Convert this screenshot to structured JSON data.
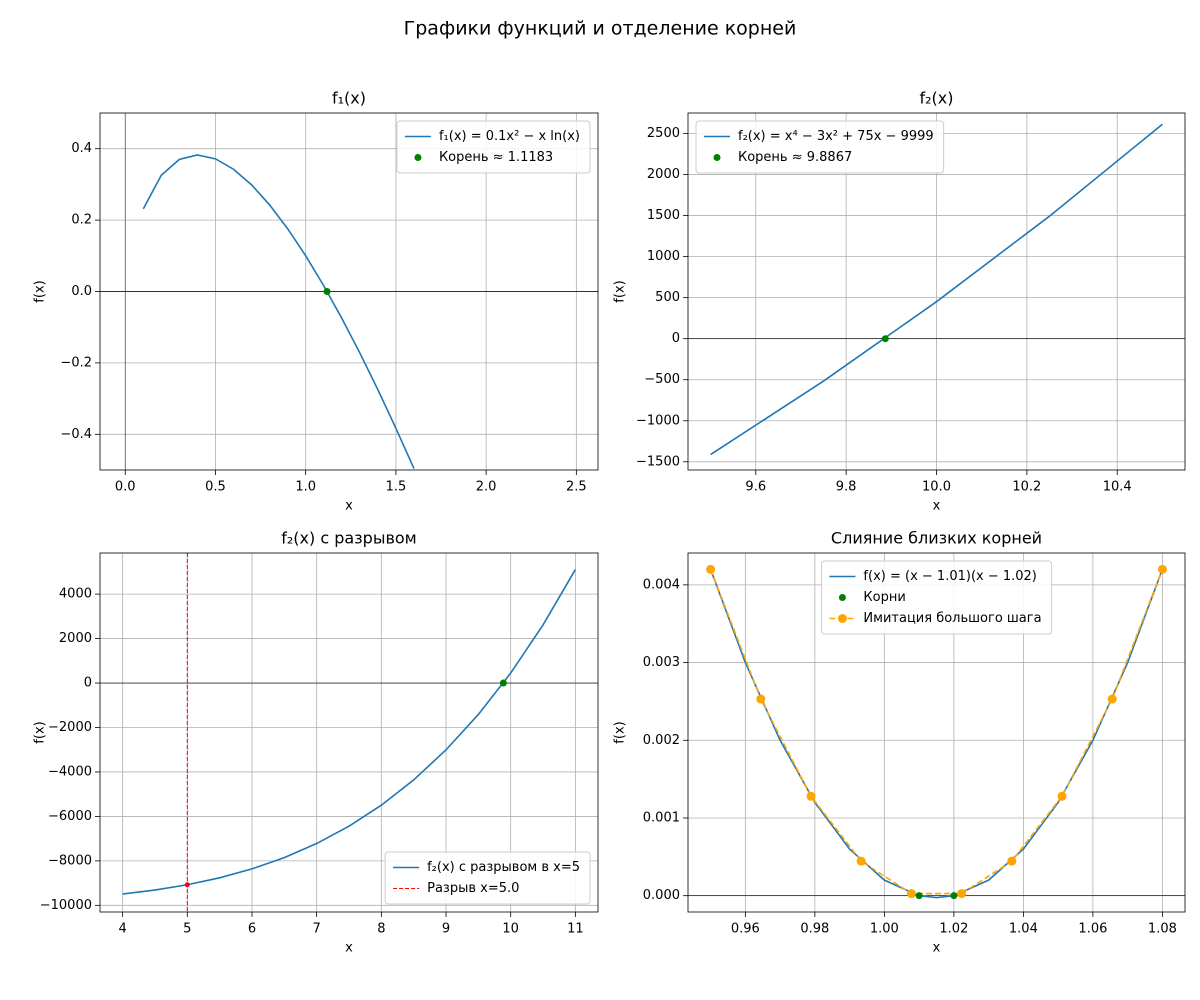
{
  "title": "Графики функций и отделение корней",
  "chart_data": [
    {
      "type": "line",
      "title": "f₁(x)",
      "xlabel": "x",
      "ylabel": "f(x)",
      "grid": true,
      "legend": "upper right",
      "xlim": [
        -0.14,
        2.62
      ],
      "ylim": [
        -0.5,
        0.5
      ],
      "xticks": [
        {
          "value": 0,
          "label": "0.0"
        },
        0.5,
        {
          "value": 1,
          "label": "1.0"
        },
        1.5,
        {
          "value": 2,
          "label": "2.0"
        },
        2.5
      ],
      "yticks": [
        {
          "value": -0.4,
          "label": "−0.4"
        },
        {
          "value": -0.2,
          "label": "−0.2"
        },
        {
          "value": 0,
          "label": "0.0"
        },
        0.2,
        0.4
      ],
      "hline": 0,
      "vline": 0,
      "series": [
        {
          "name": "f₁(x) = 0.1x² − x ln(x)",
          "color": "#1f77b4",
          "style": "line",
          "x": [
            0.1,
            0.2,
            0.3,
            0.4,
            0.5,
            0.6,
            0.7,
            0.8,
            0.9,
            1.0,
            1.1,
            1.2,
            1.3,
            1.4,
            1.5,
            1.6
          ],
          "values": [
            0.2313,
            0.3259,
            0.3702,
            0.3825,
            0.3716,
            0.3425,
            0.2987,
            0.2425,
            0.1758,
            0.1,
            0.0162,
            -0.0748,
            -0.1721,
            -0.2751,
            -0.3832,
            -0.496
          ]
        },
        {
          "name": "Корень ≈ 1.1183",
          "color": "green",
          "style": "marker",
          "x": [
            1.1183
          ],
          "values": [
            0
          ]
        }
      ]
    },
    {
      "type": "line",
      "title": "f₂(x)",
      "xlabel": "x",
      "ylabel": "f(x)",
      "grid": true,
      "legend": "upper left",
      "xlim": [
        9.45,
        10.55
      ],
      "ylim": [
        -1600,
        2750
      ],
      "xticks": [
        9.6,
        9.8,
        {
          "value": 10,
          "label": "10.0"
        },
        10.2,
        10.4
      ],
      "yticks": [
        {
          "value": -1500,
          "label": "−1500"
        },
        {
          "value": -1000,
          "label": "−1000"
        },
        {
          "value": -500,
          "label": "−500"
        },
        0,
        500,
        1000,
        1500,
        2000,
        2500
      ],
      "hline": 0,
      "series": [
        {
          "name": "f₂(x) = x⁴ − 3x² + 75x − 9999",
          "color": "#1f77b4",
          "style": "line",
          "x": [
            9.5,
            9.75,
            10,
            10.25,
            10.5
          ],
          "values": [
            -1412.19,
            -516.06,
            451,
            1492.69,
            2612.81
          ]
        },
        {
          "name": "Корень ≈ 9.8867",
          "color": "green",
          "style": "marker",
          "x": [
            9.8867
          ],
          "values": [
            0
          ]
        }
      ]
    },
    {
      "type": "line",
      "title": "f₂(x) с разрывом",
      "xlabel": "x",
      "ylabel": "f(x)",
      "grid": true,
      "legend": "lower right",
      "xlim": [
        3.65,
        11.35
      ],
      "ylim": [
        -10300,
        5850
      ],
      "xticks": [
        4,
        5,
        6,
        7,
        8,
        9,
        10,
        11
      ],
      "yticks": [
        {
          "value": -10000,
          "label": "−10000"
        },
        {
          "value": -8000,
          "label": "−8000"
        },
        {
          "value": -6000,
          "label": "−6000"
        },
        {
          "value": -4000,
          "label": "−4000"
        },
        {
          "value": -2000,
          "label": "−2000"
        },
        0,
        2000,
        4000
      ],
      "hline": 0,
      "series": [
        {
          "name": "f₂(x) с разрывом в x=5",
          "color": "#1f77b4",
          "style": "line",
          "x": [
            4,
            4.5,
            5,
            5.5,
            6,
            6.5,
            7,
            7.5,
            8,
            8.5,
            9,
            9.5,
            10,
            10.5,
            11
          ],
          "values": [
            -9491,
            -9312.19,
            -9074,
            -8762.19,
            -8361,
            -7853.19,
            -7220,
            -6441.19,
            -5495,
            -4358.19,
            -3006,
            -1412.19,
            451,
            2612.81,
            5104
          ]
        },
        {
          "name": "Разрыв x=5.0",
          "color": "red",
          "style": "vline",
          "x": [
            5
          ]
        },
        {
          "color": "red",
          "style": "small-marker",
          "x": [
            5
          ],
          "values": [
            -9074
          ]
        },
        {
          "color": "green",
          "style": "marker",
          "x": [
            9.8867
          ],
          "values": [
            0
          ]
        }
      ]
    },
    {
      "type": "line",
      "title": "Слияние близких корней",
      "xlabel": "x",
      "ylabel": "f(x)",
      "grid": true,
      "legend": "upper center",
      "xlim": [
        0.9435,
        1.0865
      ],
      "ylim": [
        -0.00021,
        0.00441
      ],
      "xticks": [
        0.96,
        0.98,
        {
          "value": 1,
          "label": "1.00"
        },
        1.02,
        1.04,
        1.06,
        1.08
      ],
      "yticks": [
        {
          "value": 0,
          "label": "0.000"
        },
        0.001,
        0.002,
        0.003,
        0.004
      ],
      "hline": 0,
      "series": [
        {
          "name": "f(x) = (x − 1.01)(x − 1.02)",
          "color": "#1f77b4",
          "style": "line",
          "x": [
            0.95,
            0.96,
            0.97,
            0.98,
            0.99,
            1.0,
            1.01,
            1.015,
            1.02,
            1.03,
            1.04,
            1.05,
            1.06,
            1.07,
            1.08
          ],
          "values": [
            0.0042,
            0.003,
            0.002,
            0.0012,
            0.0006,
            0.0002,
            0,
            -2.5e-05,
            0,
            0.0002,
            0.0006,
            0.0012,
            0.002,
            0.003,
            0.0042
          ]
        },
        {
          "name": "Корни",
          "color": "green",
          "style": "marker",
          "x": [
            1.01,
            1.02
          ],
          "values": [
            0,
            0
          ]
        },
        {
          "name": "Имитация большого шага",
          "color": "orange",
          "style": "dashed-marker",
          "x": [
            0.95,
            0.96444,
            0.97889,
            0.99333,
            1.00778,
            1.02222,
            1.03667,
            1.05111,
            1.06556,
            1.08
          ],
          "values": [
            0.0042,
            0.002531,
            0.001279,
            0.000444,
            2.72e-05,
            2.72e-05,
            0.000444,
            0.001279,
            0.002531,
            0.0042
          ]
        }
      ]
    }
  ]
}
